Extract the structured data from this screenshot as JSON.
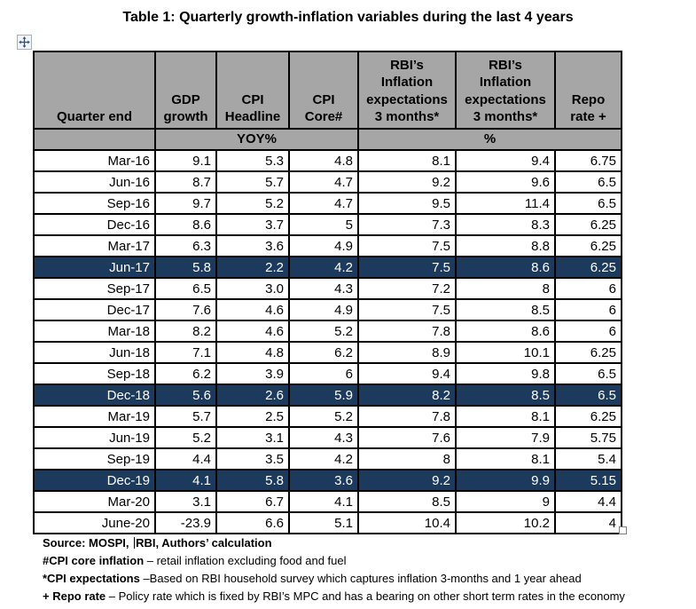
{
  "page": {
    "title": "Table 1: Quarterly growth-inflation variables during the last 4 years"
  },
  "colors": {
    "header_bg": "#A6A6A6",
    "highlight_bg": "#1C3A5E",
    "highlight_text": "#FFFFFF",
    "grid_border": "#000000"
  },
  "icons": {
    "move_handle": "table-move-handle (four-direction arrows)",
    "resize_handle": "table-resize-handle (small square)"
  },
  "table": {
    "header": [
      "Quarter end",
      "GDP\ngrowth",
      "CPI\nHeadline",
      "CPI\nCore#",
      "RBI’s\nInflation\nexpectations\n3 months*",
      "RBI’s\nInflation\nexpectations\n3 months*",
      "Repo\nrate +"
    ],
    "subheader": {
      "yoy": "YOY%",
      "pct": "%"
    },
    "rows": [
      {
        "cells": [
          "Mar-16",
          "9.1",
          "5.3",
          "4.8",
          "8.1",
          "9.4",
          "6.75"
        ],
        "highlight": false
      },
      {
        "cells": [
          "Jun-16",
          "8.7",
          "5.7",
          "4.7",
          "9.2",
          "9.6",
          "6.5"
        ],
        "highlight": false
      },
      {
        "cells": [
          "Sep-16",
          "9.7",
          "5.2",
          "4.7",
          "9.5",
          "11.4",
          "6.5"
        ],
        "highlight": false
      },
      {
        "cells": [
          "Dec-16",
          "8.6",
          "3.7",
          "5",
          "7.3",
          "8.3",
          "6.25"
        ],
        "highlight": false
      },
      {
        "cells": [
          "Mar-17",
          "6.3",
          "3.6",
          "4.9",
          "7.5",
          "8.8",
          "6.25"
        ],
        "highlight": false
      },
      {
        "cells": [
          "Jun-17",
          "5.8",
          "2.2",
          "4.2",
          "7.5",
          "8.6",
          "6.25"
        ],
        "highlight": true
      },
      {
        "cells": [
          "Sep-17",
          "6.5",
          "3.0",
          "4.3",
          "7.2",
          "8",
          "6"
        ],
        "highlight": false
      },
      {
        "cells": [
          "Dec-17",
          "7.6",
          "4.6",
          "4.9",
          "7.5",
          "8.5",
          "6"
        ],
        "highlight": false
      },
      {
        "cells": [
          "Mar-18",
          "8.2",
          "4.6",
          "5.2",
          "7.8",
          "8.6",
          "6"
        ],
        "highlight": false
      },
      {
        "cells": [
          "Jun-18",
          "7.1",
          "4.8",
          "6.2",
          "8.9",
          "10.1",
          "6.25"
        ],
        "highlight": false
      },
      {
        "cells": [
          "Sep-18",
          "6.2",
          "3.9",
          "6",
          "9.4",
          "9.8",
          "6.5"
        ],
        "highlight": false
      },
      {
        "cells": [
          "Dec-18",
          "5.6",
          "2.6",
          "5.9",
          "8.2",
          "8.5",
          "6.5"
        ],
        "highlight": true
      },
      {
        "cells": [
          "Mar-19",
          "5.7",
          "2.5",
          "5.2",
          "7.8",
          "8.1",
          "6.25"
        ],
        "highlight": false
      },
      {
        "cells": [
          "Jun-19",
          "5.2",
          "3.1",
          "4.3",
          "7.6",
          "7.9",
          "5.75"
        ],
        "highlight": false
      },
      {
        "cells": [
          "Sep-19",
          "4.4",
          "3.5",
          "4.2",
          "8",
          "8.1",
          "5.4"
        ],
        "highlight": false
      },
      {
        "cells": [
          "Dec-19",
          "4.1",
          "5.8",
          "3.6",
          "9.2",
          "9.9",
          "5.15"
        ],
        "highlight": true
      },
      {
        "cells": [
          "Mar-20",
          "3.1",
          "6.7",
          "4.1",
          "8.5",
          "9",
          "4.4"
        ],
        "highlight": false
      },
      {
        "cells": [
          "June-20",
          "-23.9",
          "6.6",
          "5.1",
          "10.4",
          "10.2",
          "4"
        ],
        "highlight": false
      }
    ]
  },
  "footnotes": {
    "source": {
      "prefix": "Source: MOSPI, ",
      "suffix": "RBI, Authors’ calculation"
    },
    "items": [
      {
        "bold": "#CPI core inflation",
        "rest": " – retail inflation excluding food and fuel"
      },
      {
        "bold": "*CPI expectations",
        "rest": " –Based on RBI household survey which captures inflation 3-months and 1 year ahead"
      },
      {
        "bold": "+ Repo rate",
        "rest": " – Policy rate which is fixed by RBI’s MPC and has a bearing on other short term rates in the economy"
      }
    ]
  }
}
